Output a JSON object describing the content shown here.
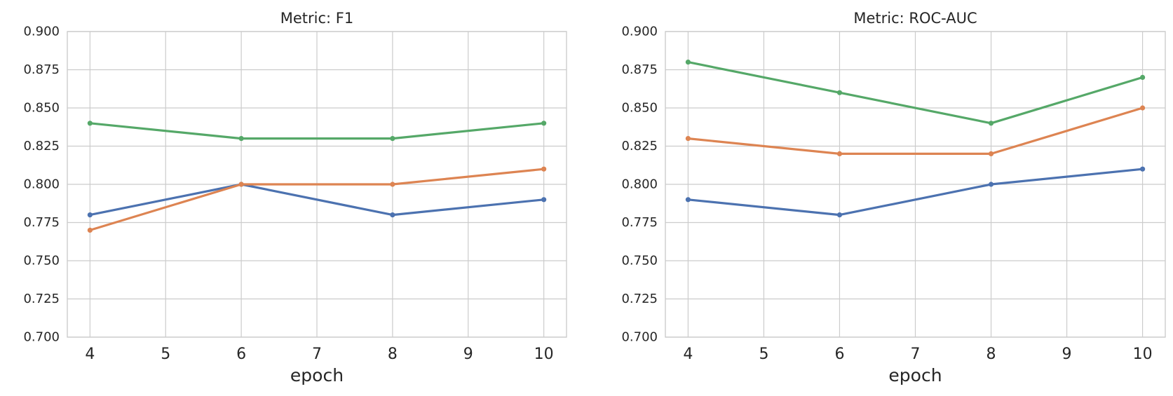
{
  "figure": {
    "background": "#ffffff",
    "text_color": "#262626",
    "grid_color": "#cccccc",
    "spine_color": "#cccccc",
    "series_colors": {
      "blue": "#4C72B0",
      "orange": "#DD8452",
      "green": "#55A868"
    }
  },
  "chart_data": [
    {
      "type": "line",
      "title": "Metric: F1",
      "xlabel": "epoch",
      "ylabel": "",
      "grid": true,
      "legend": "none",
      "marker": "circle",
      "x": [
        4,
        6,
        8,
        10
      ],
      "xticks": [
        4,
        5,
        6,
        7,
        8,
        9,
        10
      ],
      "xtick_labels": [
        "4",
        "5",
        "6",
        "7",
        "8",
        "9",
        "10"
      ],
      "yticks": [
        0.7,
        0.725,
        0.75,
        0.775,
        0.8,
        0.825,
        0.85,
        0.875,
        0.9
      ],
      "ytick_labels": [
        "0.700",
        "0.725",
        "0.750",
        "0.775",
        "0.800",
        "0.825",
        "0.850",
        "0.875",
        "0.900"
      ],
      "xlim": [
        3.7,
        10.3
      ],
      "ylim": [
        0.7,
        0.9
      ],
      "series": [
        {
          "name": "series-blue",
          "color": "#4C72B0",
          "values": [
            0.78,
            0.8,
            0.78,
            0.79
          ]
        },
        {
          "name": "series-orange",
          "color": "#DD8452",
          "values": [
            0.77,
            0.8,
            0.8,
            0.81
          ]
        },
        {
          "name": "series-green",
          "color": "#55A868",
          "values": [
            0.84,
            0.83,
            0.83,
            0.84
          ]
        }
      ]
    },
    {
      "type": "line",
      "title": "Metric: ROC-AUC",
      "xlabel": "epoch",
      "ylabel": "",
      "grid": true,
      "legend": "none",
      "marker": "circle",
      "x": [
        4,
        6,
        8,
        10
      ],
      "xticks": [
        4,
        5,
        6,
        7,
        8,
        9,
        10
      ],
      "xtick_labels": [
        "4",
        "5",
        "6",
        "7",
        "8",
        "9",
        "10"
      ],
      "yticks": [
        0.7,
        0.725,
        0.75,
        0.775,
        0.8,
        0.825,
        0.85,
        0.875,
        0.9
      ],
      "ytick_labels": [
        "0.700",
        "0.725",
        "0.750",
        "0.775",
        "0.800",
        "0.825",
        "0.850",
        "0.875",
        "0.900"
      ],
      "xlim": [
        3.7,
        10.3
      ],
      "ylim": [
        0.7,
        0.9
      ],
      "series": [
        {
          "name": "series-blue",
          "color": "#4C72B0",
          "values": [
            0.79,
            0.78,
            0.8,
            0.81
          ]
        },
        {
          "name": "series-orange",
          "color": "#DD8452",
          "values": [
            0.83,
            0.82,
            0.82,
            0.85
          ]
        },
        {
          "name": "series-green",
          "color": "#55A868",
          "values": [
            0.88,
            0.86,
            0.84,
            0.87
          ]
        }
      ]
    }
  ]
}
